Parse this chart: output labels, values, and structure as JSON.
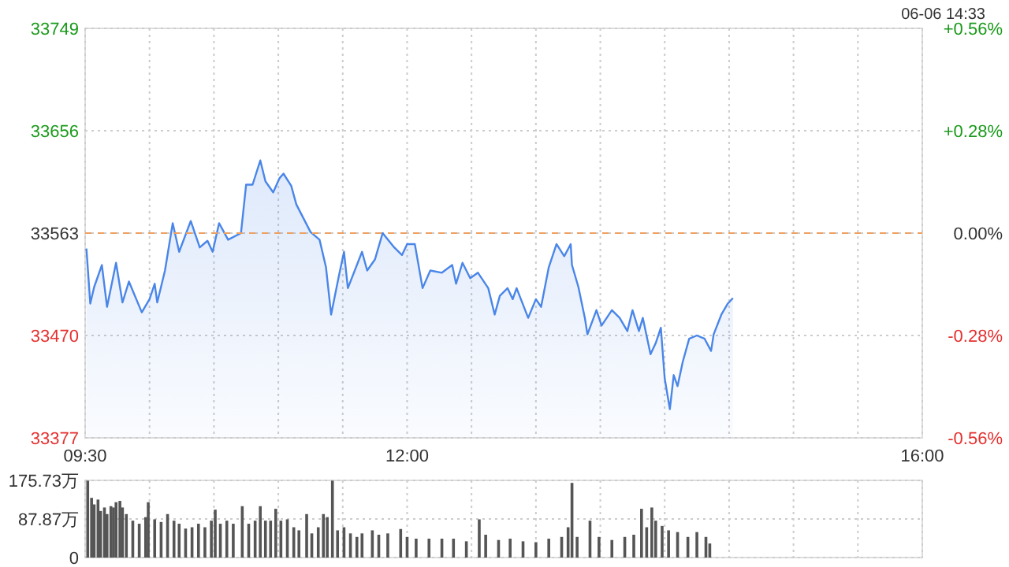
{
  "chart_data": [
    {
      "type": "area",
      "annotations": [
        "06-06 14:33"
      ],
      "x": [
        9.51,
        9.54,
        9.57,
        9.63,
        9.67,
        9.74,
        9.79,
        9.84,
        9.94,
        10.0,
        10.04,
        10.06,
        10.12,
        10.18,
        10.23,
        10.32,
        10.39,
        10.45,
        10.49,
        10.54,
        10.61,
        10.71,
        10.75,
        10.8,
        10.86,
        10.9,
        10.96,
        11.01,
        11.04,
        11.1,
        11.14,
        11.25,
        11.32,
        11.37,
        11.41,
        11.47,
        11.51,
        11.54,
        11.65,
        11.69,
        11.75,
        11.81,
        11.9,
        11.96,
        12.0,
        12.06,
        12.12,
        12.18,
        12.27,
        12.35,
        12.38,
        12.43,
        12.49,
        12.55,
        12.63,
        12.68,
        12.72,
        12.78,
        12.82,
        12.85,
        12.94,
        13.0,
        13.04,
        13.1,
        13.16,
        13.22,
        13.27,
        13.28,
        13.33,
        13.38,
        13.4,
        13.47,
        13.51,
        13.59,
        13.65,
        13.71,
        13.75,
        13.8,
        13.83,
        13.89,
        13.93,
        13.97,
        14.0,
        14.04,
        14.07,
        14.1,
        14.14,
        14.19,
        14.25,
        14.31,
        14.36,
        14.38,
        14.44,
        14.49,
        14.53
      ],
      "series": [
        {
          "color": "#4a86e8",
          "values": [
            33549,
            33499,
            33514,
            33534,
            33496,
            33536,
            33500,
            33519,
            33491,
            33503,
            33517,
            33500,
            33529,
            33572,
            33546,
            33574,
            33550,
            33556,
            33546,
            33572,
            33557,
            33563,
            33607,
            33607,
            33629,
            33610,
            33600,
            33613,
            33617,
            33606,
            33589,
            33564,
            33557,
            33532,
            33489,
            33524,
            33546,
            33513,
            33546,
            33529,
            33539,
            33563,
            33550,
            33543,
            33553,
            33553,
            33513,
            33529,
            33527,
            33534,
            33517,
            33536,
            33522,
            33527,
            33513,
            33489,
            33506,
            33513,
            33503,
            33513,
            33486,
            33503,
            33496,
            33532,
            33553,
            33542,
            33553,
            33534,
            33514,
            33486,
            33471,
            33493,
            33479,
            33493,
            33486,
            33474,
            33493,
            33474,
            33486,
            33453,
            33463,
            33477,
            33431,
            33403,
            33434,
            33424,
            33446,
            33467,
            33470,
            33467,
            33456,
            33471,
            33489,
            33499,
            33504
          ]
        }
      ],
      "xlim": [
        9.5,
        16
      ],
      "xticks": [
        {
          "value": 9.5,
          "label": "09:30"
        },
        {
          "value": 10,
          "label": null
        },
        {
          "value": 10.5,
          "label": null
        },
        {
          "value": 11,
          "label": null
        },
        {
          "value": 11.5,
          "label": null
        },
        {
          "value": 12,
          "label": "12:00"
        },
        {
          "value": 12.5,
          "label": null
        },
        {
          "value": 13,
          "label": null
        },
        {
          "value": 13.5,
          "label": null
        },
        {
          "value": 14,
          "label": null
        },
        {
          "value": 14.5,
          "label": null
        },
        {
          "value": 15,
          "label": null
        },
        {
          "value": 15.5,
          "label": null
        },
        {
          "value": 16,
          "label": "16:00"
        }
      ],
      "ylim": [
        33377,
        33749
      ],
      "yticks": [
        33377,
        33470,
        33563,
        33656,
        33749
      ],
      "y2lim": [
        -0.56,
        0.56
      ],
      "y2ticks": [
        {
          "value": -0.56,
          "label": "-0.56%"
        },
        {
          "value": -0.28,
          "label": "-0.28%"
        },
        {
          "value": 0,
          "label": "0.00%"
        },
        {
          "value": 0.28,
          "label": "+0.28%"
        },
        {
          "value": 0.56,
          "label": "+0.56%"
        }
      ],
      "ref_lines": [
        {
          "axis": "y",
          "value": 33563,
          "color": "#f0a060",
          "line_style": "dashed"
        }
      ],
      "grid": true
    },
    {
      "type": "bar",
      "tick_labels": "y",
      "x": [
        9.52,
        9.55,
        9.57,
        9.6,
        9.62,
        9.65,
        9.67,
        9.7,
        9.72,
        9.74,
        9.77,
        9.79,
        9.82,
        9.87,
        9.92,
        9.97,
        9.99,
        10.04,
        10.09,
        10.14,
        10.19,
        10.23,
        10.28,
        10.33,
        10.38,
        10.43,
        10.48,
        10.51,
        10.55,
        10.6,
        10.65,
        10.72,
        10.77,
        10.82,
        10.86,
        10.9,
        10.94,
        10.98,
        11.02,
        11.07,
        11.12,
        11.16,
        11.22,
        11.26,
        11.31,
        11.35,
        11.38,
        11.42,
        11.46,
        11.51,
        11.56,
        11.61,
        11.65,
        11.73,
        11.78,
        11.85,
        11.95,
        12.0,
        12.07,
        12.17,
        12.27,
        12.36,
        12.46,
        12.56,
        12.61,
        12.71,
        12.8,
        12.9,
        13.0,
        13.1,
        13.2,
        13.25,
        13.28,
        13.32,
        13.42,
        13.49,
        13.59,
        13.69,
        13.76,
        13.82,
        13.86,
        13.9,
        13.93,
        13.98,
        14.03,
        14.1,
        14.18,
        14.25,
        14.32,
        14.35
      ],
      "series": [
        {
          "color": "#555555",
          "values": [
            175,
            136,
            121,
            132,
            106,
            114,
            99,
            117,
            114,
            126,
            129,
            114,
            99,
            84,
            77,
            92,
            126,
            87,
            81,
            99,
            84,
            77,
            66,
            69,
            77,
            69,
            84,
            109,
            77,
            84,
            77,
            117,
            77,
            84,
            117,
            84,
            84,
            111,
            84,
            87,
            69,
            62,
            99,
            55,
            69,
            99,
            92,
            175,
            62,
            69,
            55,
            47,
            55,
            62,
            52,
            55,
            65,
            47,
            43,
            43,
            43,
            43,
            37,
            87,
            52,
            40,
            43,
            37,
            35,
            43,
            47,
            69,
            170,
            47,
            84,
            47,
            40,
            47,
            52,
            111,
            69,
            114,
            84,
            72,
            62,
            58,
            47,
            58,
            47,
            32
          ]
        }
      ],
      "xlim": [
        9.5,
        16
      ],
      "xticks": [
        {
          "value": 9.5,
          "label": null
        },
        {
          "value": 10,
          "label": null
        },
        {
          "value": 10.5,
          "label": null
        },
        {
          "value": 11,
          "label": null
        },
        {
          "value": 11.5,
          "label": null
        },
        {
          "value": 12,
          "label": null
        },
        {
          "value": 12.5,
          "label": null
        },
        {
          "value": 13,
          "label": null
        },
        {
          "value": 13.5,
          "label": null
        },
        {
          "value": 14,
          "label": null
        },
        {
          "value": 14.5,
          "label": null
        },
        {
          "value": 15,
          "label": null
        },
        {
          "value": 15.5,
          "label": null
        },
        {
          "value": 16,
          "label": null
        }
      ],
      "ylim": [
        0,
        175.73
      ],
      "yticks": [
        0,
        {
          "value": 87.87,
          "label": "87.87万"
        },
        {
          "value": 175.73,
          "label": "175.73万"
        }
      ],
      "grid": true
    }
  ]
}
